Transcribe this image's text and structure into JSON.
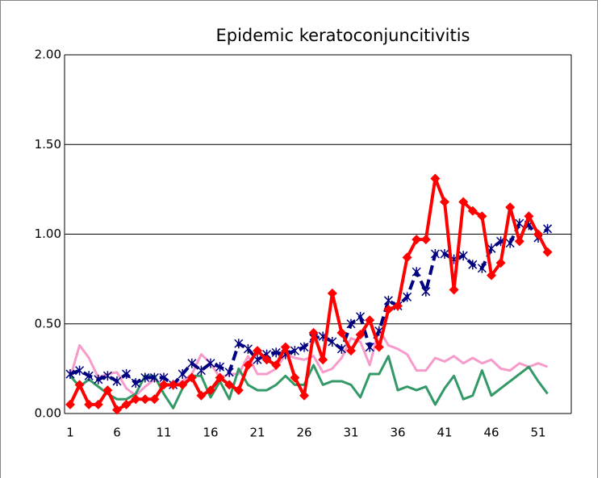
{
  "chart_data": {
    "type": "line",
    "title": "Epidemic keratoconjuncitivitis",
    "categories": [
      1,
      null,
      null,
      null,
      null,
      6,
      null,
      null,
      null,
      null,
      11,
      null,
      null,
      null,
      null,
      16,
      null,
      null,
      null,
      null,
      21,
      null,
      null,
      null,
      null,
      26,
      null,
      null,
      null,
      null,
      31,
      null,
      null,
      null,
      null,
      36,
      null,
      null,
      null,
      null,
      41,
      null,
      null,
      null,
      null,
      46,
      null,
      null,
      null,
      null,
      51,
      null
    ],
    "ylim": [
      0,
      2
    ],
    "yticks": [
      {
        "value": 0,
        "label": "0.00"
      },
      {
        "value": 0.5,
        "label": "0.50"
      },
      {
        "value": 1,
        "label": "1.00"
      },
      {
        "value": 1.5,
        "label": "1.50"
      },
      {
        "value": 2,
        "label": "2.00"
      }
    ],
    "grid": true,
    "series": [
      {
        "color": "#f79bcb",
        "width": 3,
        "dash": false,
        "marker": "none",
        "values": [
          0.2,
          0.38,
          0.31,
          0.2,
          0.22,
          0.23,
          0.14,
          0.1,
          0.15,
          0.19,
          0.15,
          0.16,
          0.18,
          0.22,
          0.33,
          0.28,
          0.2,
          0.22,
          0.22,
          0.32,
          0.22,
          0.22,
          0.25,
          0.33,
          0.31,
          0.3,
          0.32,
          0.23,
          0.25,
          0.31,
          0.42,
          0.4,
          0.27,
          0.47,
          0.38,
          0.36,
          0.33,
          0.24,
          0.24,
          0.31,
          0.29,
          0.32,
          0.28,
          0.31,
          0.28,
          0.3,
          0.25,
          0.24,
          0.28,
          0.26,
          0.28,
          0.26
        ]
      },
      {
        "color": "#339966",
        "width": 3,
        "dash": false,
        "marker": "none",
        "values": [
          0.21,
          0.15,
          0.19,
          0.15,
          0.11,
          0.08,
          0.08,
          0.11,
          0.21,
          0.21,
          0.11,
          0.03,
          0.14,
          0.21,
          0.21,
          0.09,
          0.18,
          0.08,
          0.25,
          0.16,
          0.13,
          0.13,
          0.16,
          0.21,
          0.16,
          0.16,
          0.27,
          0.16,
          0.18,
          0.18,
          0.16,
          0.09,
          0.22,
          0.22,
          0.32,
          0.13,
          0.15,
          0.13,
          0.15,
          0.05,
          0.14,
          0.21,
          0.08,
          0.1,
          0.24,
          0.1,
          0.14,
          0.18,
          0.22,
          0.26,
          0.18,
          0.11
        ]
      },
      {
        "color": "#000080",
        "width": 4,
        "dash": true,
        "marker": "asterisk",
        "values": [
          0.22,
          0.24,
          0.21,
          0.19,
          0.21,
          0.18,
          0.22,
          0.17,
          0.2,
          0.2,
          0.2,
          0.16,
          0.22,
          0.28,
          0.24,
          0.28,
          0.26,
          0.23,
          0.39,
          0.36,
          0.3,
          0.33,
          0.34,
          0.33,
          0.35,
          0.37,
          0.42,
          0.43,
          0.4,
          0.36,
          0.5,
          0.54,
          0.37,
          0.46,
          0.63,
          0.6,
          0.65,
          0.79,
          0.68,
          0.89,
          0.89,
          0.86,
          0.88,
          0.83,
          0.81,
          0.92,
          0.96,
          0.95,
          1.06,
          1.05,
          0.98,
          1.03
        ]
      },
      {
        "color": "#ff0000",
        "width": 4,
        "dash": false,
        "marker": "diamond",
        "values": [
          0.05,
          0.16,
          0.05,
          0.05,
          0.13,
          0.02,
          0.05,
          0.08,
          0.08,
          0.08,
          0.16,
          0.16,
          0.16,
          0.2,
          0.1,
          0.13,
          0.2,
          0.16,
          0.13,
          0.27,
          0.35,
          0.3,
          0.27,
          0.37,
          0.2,
          0.1,
          0.45,
          0.3,
          0.67,
          0.45,
          0.35,
          0.44,
          0.52,
          0.37,
          0.58,
          0.6,
          0.87,
          0.97,
          0.97,
          1.31,
          1.18,
          0.69,
          1.18,
          1.13,
          1.1,
          0.77,
          0.84,
          1.15,
          0.96,
          1.1,
          1.0,
          0.9
        ]
      }
    ]
  }
}
